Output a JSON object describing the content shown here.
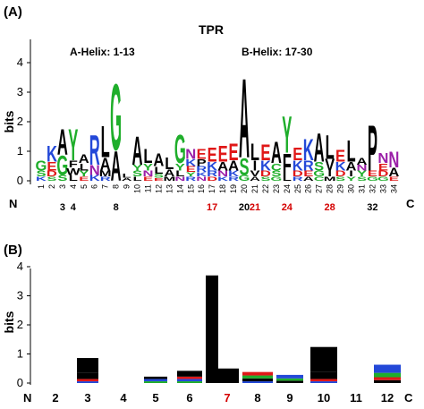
{
  "chart_data": [
    {
      "type": "sequence-logo",
      "panel_label": "(A)",
      "title": "TPR",
      "ylabel": "bits",
      "ylim": [
        0,
        4
      ],
      "yticks": [
        0,
        1,
        2,
        3,
        4
      ],
      "positions": [
        "1",
        "2",
        "3",
        "4",
        "5",
        "6",
        "7",
        "8",
        "9",
        "10",
        "11",
        "12",
        "13",
        "14",
        "15",
        "16",
        "17",
        "18",
        "19",
        "20",
        "21",
        "22",
        "23",
        "24",
        "25",
        "26",
        "27",
        "28",
        "29",
        "30",
        "31",
        "32",
        "33",
        "34"
      ],
      "n_label": "N",
      "c_label": "C",
      "annotations": [
        "A-Helix: 1-13",
        "B-Helix: 17-30"
      ],
      "highlight_positions": [
        {
          "label": "3",
          "color": "#000000"
        },
        {
          "label": "4",
          "color": "#000000"
        },
        {
          "label": "8",
          "color": "#000000"
        },
        {
          "label": "17",
          "color": "#d40000"
        },
        {
          "label": "20",
          "color": "#000000"
        },
        {
          "label": "21",
          "color": "#d40000"
        },
        {
          "label": "24",
          "color": "#d40000"
        },
        {
          "label": "28",
          "color": "#d40000"
        },
        {
          "label": "32",
          "color": "#000000"
        }
      ],
      "letters": [
        {
          "pos": 1,
          "stack": [
            [
              "G",
              0.35
            ],
            [
              "S",
              0.2
            ],
            [
              "K",
              0.15
            ]
          ]
        },
        {
          "pos": 2,
          "stack": [
            [
              "K",
              0.55
            ],
            [
              "E",
              0.3
            ],
            [
              "D",
              0.2
            ],
            [
              "S",
              0.15
            ]
          ]
        },
        {
          "pos": 3,
          "stack": [
            [
              "A",
              0.9
            ],
            [
              "G",
              0.7
            ],
            [
              "S",
              0.2
            ]
          ]
        },
        {
          "pos": 4,
          "stack": [
            [
              "Y",
              1.1
            ],
            [
              "W",
              0.25
            ],
            [
              "F",
              0.25
            ],
            [
              "L",
              0.2
            ]
          ]
        },
        {
          "pos": 5,
          "stack": [
            [
              "A",
              0.3
            ],
            [
              "L",
              0.25
            ],
            [
              "Y",
              0.2
            ],
            [
              "E",
              0.15
            ]
          ]
        },
        {
          "pos": 6,
          "stack": [
            [
              "R",
              1.05
            ],
            [
              "N",
              0.35
            ],
            [
              "K",
              0.2
            ]
          ]
        },
        {
          "pos": 7,
          "stack": [
            [
              "L",
              1.1
            ],
            [
              "A",
              0.45
            ],
            [
              "M",
              0.2
            ],
            [
              "R",
              0.15
            ]
          ]
        },
        {
          "pos": 8,
          "stack": [
            [
              "G",
              2.35
            ],
            [
              "A",
              1.05
            ]
          ]
        },
        {
          "pos": 9,
          "stack": [
            [
              "L",
              0.15
            ],
            [
              "A",
              0.1
            ]
          ]
        },
        {
          "pos": 10,
          "stack": [
            [
              "A",
              1.0
            ],
            [
              "S",
              0.2
            ],
            [
              "Y",
              0.2
            ],
            [
              "L",
              0.15
            ]
          ]
        },
        {
          "pos": 11,
          "stack": [
            [
              "L",
              0.5
            ],
            [
              "Y",
              0.25
            ],
            [
              "N",
              0.2
            ],
            [
              "E",
              0.15
            ]
          ]
        },
        {
          "pos": 12,
          "stack": [
            [
              "A",
              0.45
            ],
            [
              "L",
              0.25
            ],
            [
              "S",
              0.15
            ],
            [
              "E",
              0.1
            ]
          ]
        },
        {
          "pos": 13,
          "stack": [
            [
              "L",
              0.4
            ],
            [
              "A",
              0.25
            ],
            [
              "M",
              0.15
            ]
          ]
        },
        {
          "pos": 14,
          "stack": [
            [
              "G",
              1.0
            ],
            [
              "Y",
              0.25
            ],
            [
              "L",
              0.2
            ],
            [
              "N",
              0.15
            ]
          ]
        },
        {
          "pos": 15,
          "stack": [
            [
              "N",
              0.35
            ],
            [
              "K",
              0.25
            ],
            [
              "E",
              0.2
            ],
            [
              "R",
              0.15
            ],
            [
              "Y",
              0.15
            ]
          ]
        },
        {
          "pos": 16,
          "stack": [
            [
              "E",
              0.35
            ],
            [
              "P",
              0.25
            ],
            [
              "R",
              0.2
            ],
            [
              "N",
              0.15
            ],
            [
              "K",
              0.15
            ]
          ]
        },
        {
          "pos": 17,
          "stack": [
            [
              "E",
              0.5
            ],
            [
              "K",
              0.3
            ],
            [
              "R",
              0.2
            ],
            [
              "D",
              0.15
            ]
          ]
        },
        {
          "pos": 18,
          "stack": [
            [
              "E",
              0.55
            ],
            [
              "A",
              0.3
            ],
            [
              "N",
              0.2
            ],
            [
              "K",
              0.15
            ]
          ]
        },
        {
          "pos": 19,
          "stack": [
            [
              "E",
              0.6
            ],
            [
              "A",
              0.35
            ],
            [
              "K",
              0.2
            ],
            [
              "R",
              0.15
            ]
          ]
        },
        {
          "pos": 20,
          "stack": [
            [
              "A",
              2.8
            ],
            [
              "S",
              0.6
            ],
            [
              "G",
              0.2
            ]
          ]
        },
        {
          "pos": 21,
          "stack": [
            [
              "L",
              0.6
            ],
            [
              "I",
              0.35
            ],
            [
              "V",
              0.2
            ],
            [
              "A",
              0.15
            ]
          ]
        },
        {
          "pos": 22,
          "stack": [
            [
              "E",
              0.55
            ],
            [
              "K",
              0.35
            ],
            [
              "D",
              0.2
            ],
            [
              "S",
              0.15
            ]
          ]
        },
        {
          "pos": 23,
          "stack": [
            [
              "A",
              0.75
            ],
            [
              "C",
              0.25
            ],
            [
              "S",
              0.2
            ],
            [
              "G",
              0.15
            ]
          ]
        },
        {
          "pos": 24,
          "stack": [
            [
              "Y",
              1.3
            ],
            [
              "F",
              0.75
            ],
            [
              "L",
              0.2
            ]
          ]
        },
        {
          "pos": 25,
          "stack": [
            [
              "E",
              0.45
            ],
            [
              "K",
              0.35
            ],
            [
              "D",
              0.2
            ],
            [
              "R",
              0.15
            ]
          ]
        },
        {
          "pos": 26,
          "stack": [
            [
              "K",
              0.75
            ],
            [
              "R",
              0.35
            ],
            [
              "E",
              0.2
            ],
            [
              "A",
              0.15
            ]
          ]
        },
        {
          "pos": 27,
          "stack": [
            [
              "A",
              1.0
            ],
            [
              "S",
              0.3
            ],
            [
              "G",
              0.2
            ],
            [
              "C",
              0.15
            ]
          ]
        },
        {
          "pos": 28,
          "stack": [
            [
              "L",
              0.85
            ],
            [
              "V",
              0.4
            ],
            [
              "I",
              0.2
            ],
            [
              "M",
              0.15
            ]
          ]
        },
        {
          "pos": 29,
          "stack": [
            [
              "E",
              0.4
            ],
            [
              "K",
              0.3
            ],
            [
              "D",
              0.2
            ],
            [
              "S",
              0.15
            ]
          ]
        },
        {
          "pos": 30,
          "stack": [
            [
              "L",
              0.75
            ],
            [
              "A",
              0.3
            ],
            [
              "I",
              0.2
            ],
            [
              "Y",
              0.15
            ]
          ]
        },
        {
          "pos": 31,
          "stack": [
            [
              "A",
              0.25
            ],
            [
              "Y",
              0.2
            ],
            [
              "N",
              0.2
            ],
            [
              "S",
              0.15
            ]
          ]
        },
        {
          "pos": 32,
          "stack": [
            [
              "P",
              1.6
            ],
            [
              "E",
              0.2
            ],
            [
              "G",
              0.15
            ]
          ]
        },
        {
          "pos": 33,
          "stack": [
            [
              "N",
              0.35
            ],
            [
              "E",
              0.25
            ],
            [
              "D",
              0.2
            ],
            [
              "G",
              0.15
            ]
          ]
        },
        {
          "pos": 34,
          "stack": [
            [
              "N",
              0.55
            ],
            [
              "A",
              0.3
            ],
            [
              "E",
              0.15
            ]
          ]
        }
      ],
      "colors": {
        "G": "#1fae2b",
        "S": "#1fae2b",
        "T": "#1fae2b",
        "Y": "#1fae2b",
        "C": "#1fae2b",
        "N": "#9b1fa8",
        "Q": "#9b1fa8",
        "K": "#2348d8",
        "R": "#2348d8",
        "H": "#2348d8",
        "D": "#e01818",
        "E": "#e01818",
        "A": "#000000",
        "V": "#000000",
        "L": "#000000",
        "I": "#000000",
        "P": "#000000",
        "W": "#000000",
        "F": "#000000",
        "M": "#000000"
      }
    },
    {
      "type": "sequence-logo",
      "panel_label": "(B)",
      "ylabel": "bits",
      "ylim": [
        0,
        4
      ],
      "yticks": [
        0,
        1,
        2,
        3,
        4
      ],
      "n_label": "N",
      "c_label": "C",
      "position_labels": [
        {
          "label": "2",
          "color": "#000000"
        },
        {
          "label": "3",
          "color": "#000000"
        },
        {
          "label": "4",
          "color": "#000000"
        },
        {
          "label": "5",
          "color": "#000000"
        },
        {
          "label": "6",
          "color": "#000000"
        },
        {
          "label": "7",
          "color": "#d40000"
        },
        {
          "label": "8",
          "color": "#000000"
        },
        {
          "label": "9",
          "color": "#000000"
        },
        {
          "label": "10",
          "color": "#000000"
        },
        {
          "label": "11",
          "color": "#000000"
        },
        {
          "label": "12",
          "color": "#000000"
        }
      ],
      "stacks": [
        {
          "label": "3",
          "blocks": [
            [
              "#000000",
              0.5
            ],
            [
              "#000000",
              0.22
            ],
            [
              "#e01818",
              0.08
            ],
            [
              "#2348d8",
              0.06
            ]
          ]
        },
        {
          "label": "5",
          "blocks": [
            [
              "#000000",
              0.08
            ],
            [
              "#2348d8",
              0.08
            ],
            [
              "#1fae2b",
              0.06
            ]
          ]
        },
        {
          "label": "6",
          "blocks": [
            [
              "#000000",
              0.2
            ],
            [
              "#e01818",
              0.08
            ],
            [
              "#2348d8",
              0.08
            ],
            [
              "#1fae2b",
              0.06
            ]
          ]
        },
        {
          "label": "7",
          "blocks": [
            [
              "#000000",
              3.7
            ]
          ]
        },
        {
          "label": "7b",
          "blocks": [
            [
              "#000000",
              0.5
            ]
          ]
        },
        {
          "label": "8",
          "blocks": [
            [
              "#e01818",
              0.12
            ],
            [
              "#1fae2b",
              0.1
            ],
            [
              "#000000",
              0.1
            ],
            [
              "#2348d8",
              0.06
            ]
          ]
        },
        {
          "label": "9",
          "blocks": [
            [
              "#2348d8",
              0.12
            ],
            [
              "#1fae2b",
              0.08
            ],
            [
              "#000000",
              0.08
            ]
          ]
        },
        {
          "label": "10",
          "blocks": [
            [
              "#000000",
              0.85
            ],
            [
              "#000000",
              0.25
            ],
            [
              "#e01818",
              0.08
            ],
            [
              "#2348d8",
              0.06
            ]
          ]
        },
        {
          "label": "12",
          "blocks": [
            [
              "#2348d8",
              0.28
            ],
            [
              "#1fae2b",
              0.15
            ],
            [
              "#e01818",
              0.1
            ],
            [
              "#000000",
              0.1
            ]
          ]
        }
      ]
    }
  ]
}
